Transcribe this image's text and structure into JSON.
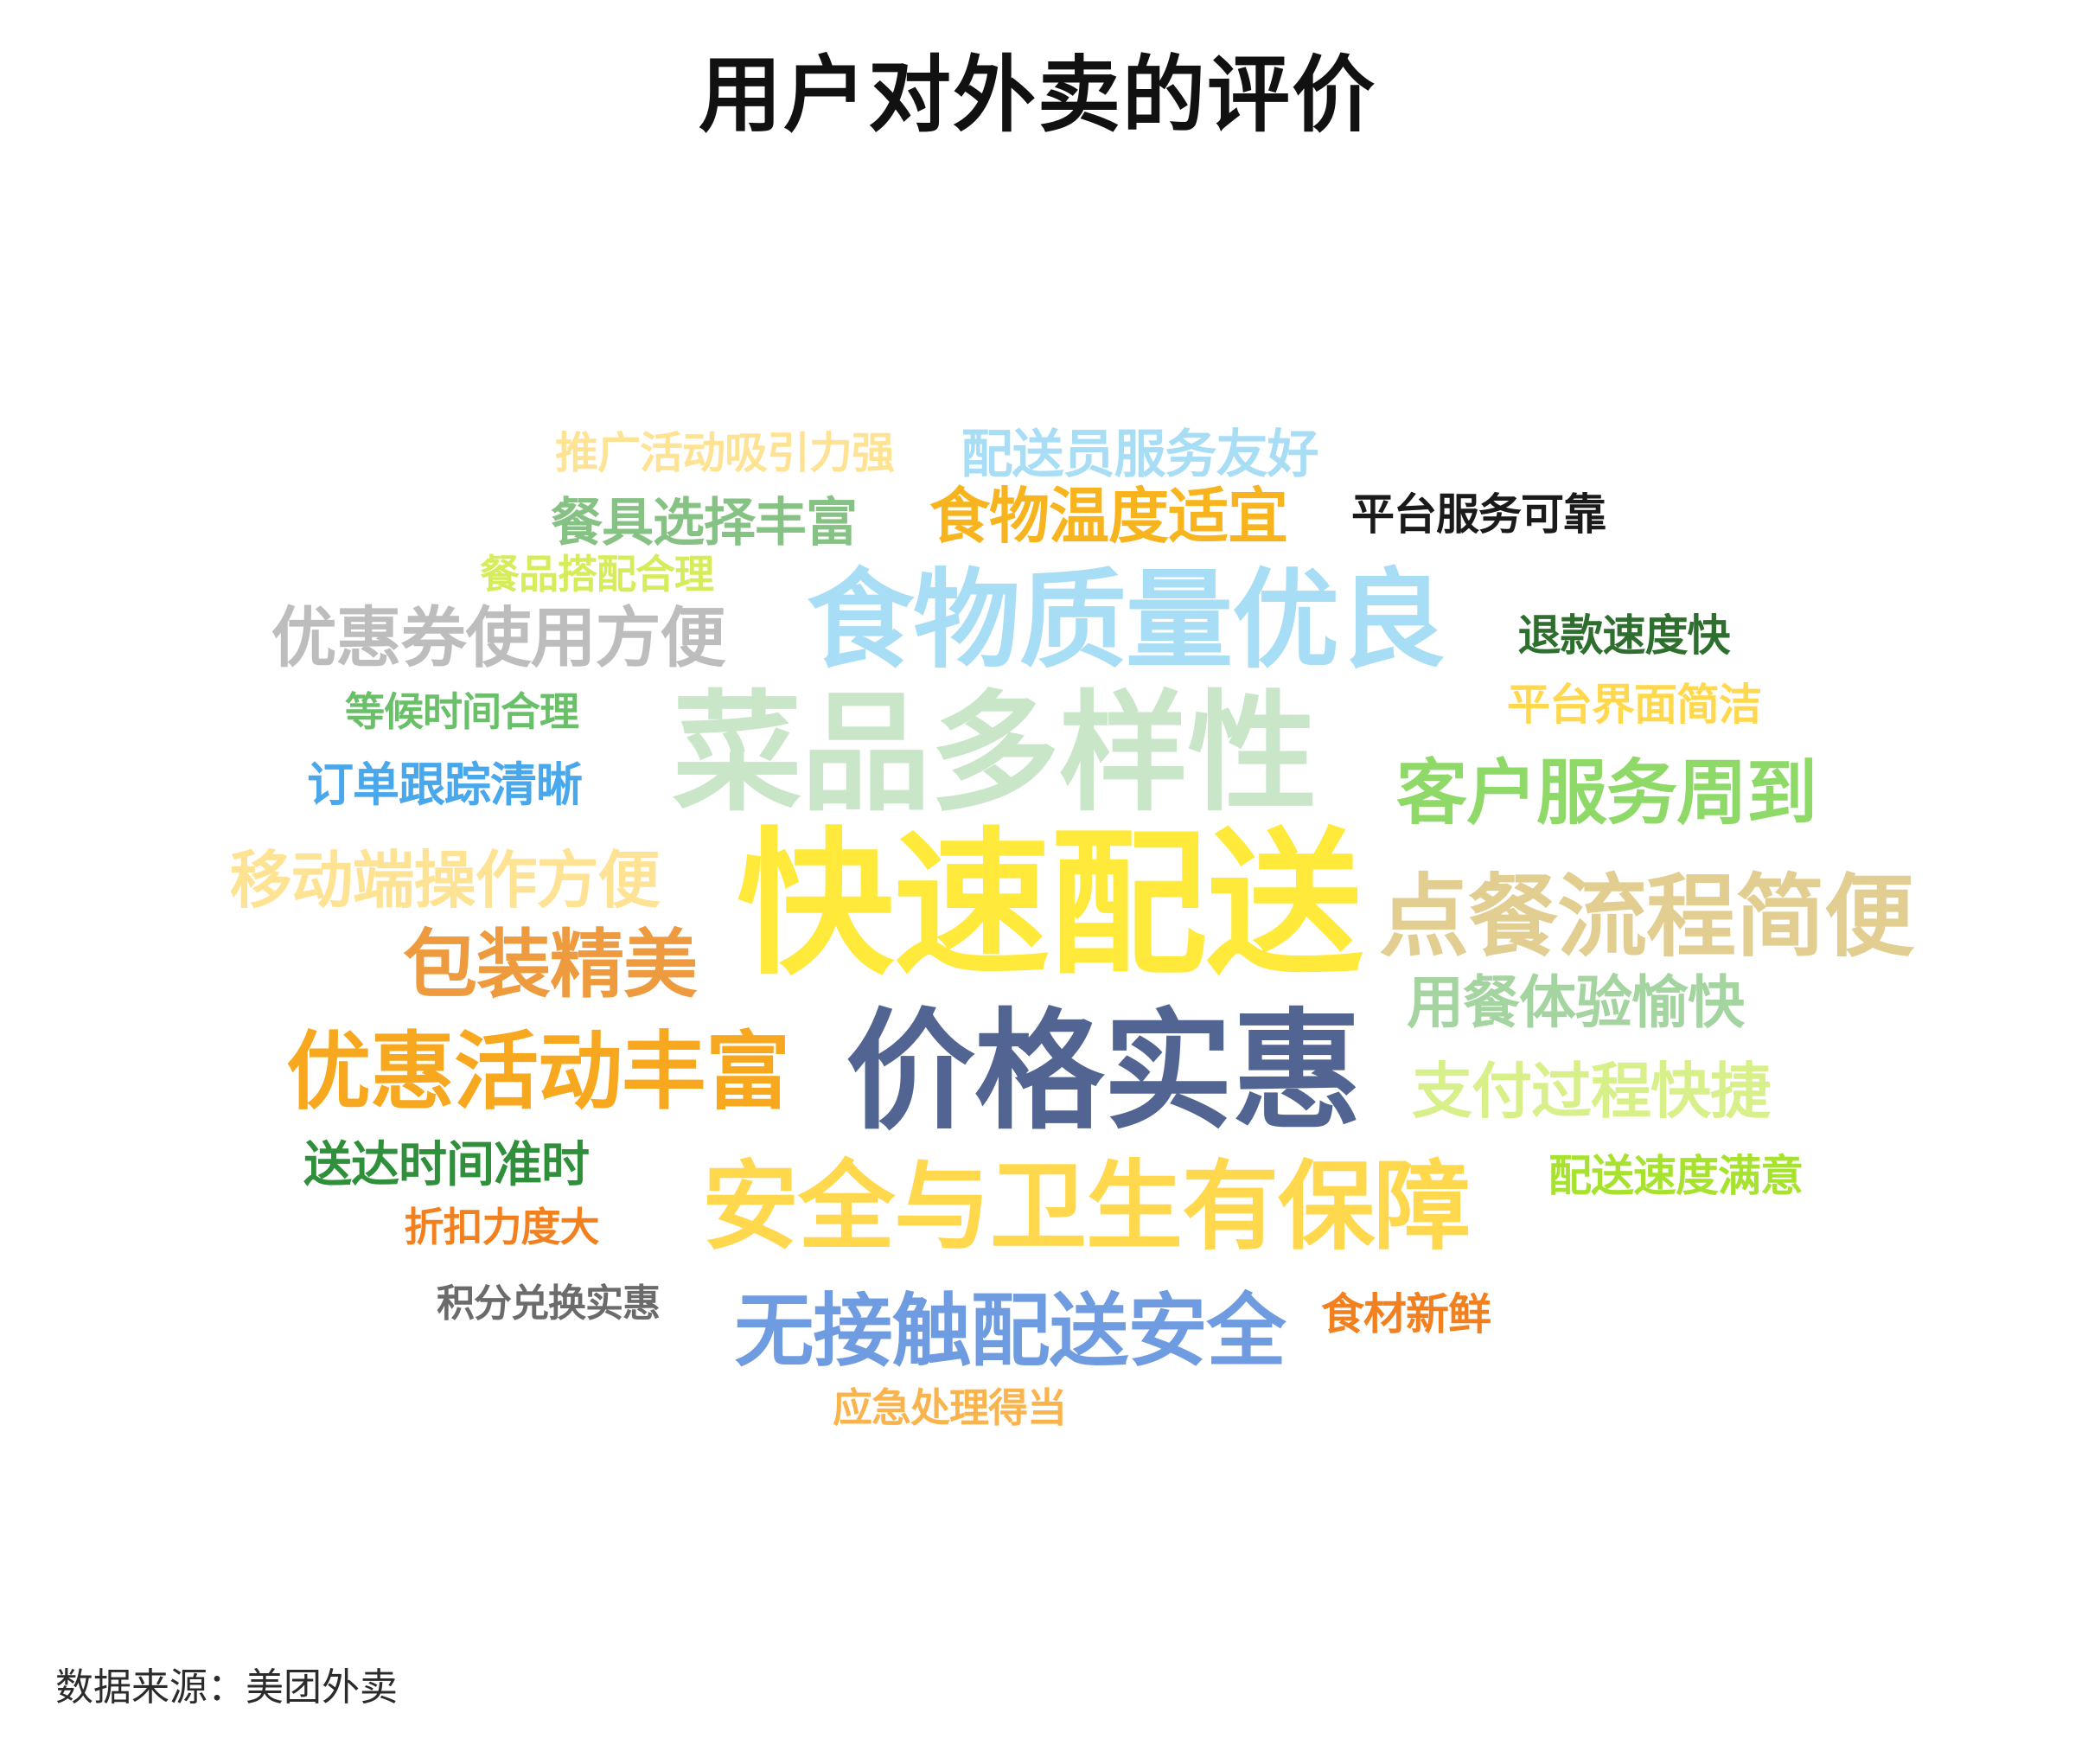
{
  "chart_data": {
    "type": "wordcloud",
    "title": "用户对外卖的评价",
    "source": "数据来源：美团外卖",
    "words": [
      {
        "text": "快速配送",
        "color": "#FFE93B"
      },
      {
        "text": "菜品多样性",
        "color": "#C9E6C9"
      },
      {
        "text": "食物质量优良",
        "color": "#A8DDF6"
      },
      {
        "text": "价格实惠",
        "color": "#526492"
      },
      {
        "text": "安全与卫生有保障",
        "color": "#FFD84D"
      },
      {
        "text": "点餐流程简便",
        "color": "#E3CE92"
      },
      {
        "text": "优惠活动丰富",
        "color": "#F8A81E"
      },
      {
        "text": "无接触配送安全",
        "color": "#6F9BE0"
      },
      {
        "text": "客户服务周到",
        "color": "#8FD969"
      },
      {
        "text": "包装精美",
        "color": "#EE9B3F"
      },
      {
        "text": "移动端操作方便",
        "color": "#FFE394"
      },
      {
        "text": "优惠券使用方便",
        "color": "#BDBDBD"
      },
      {
        "text": "食物温度适宜",
        "color": "#F8B41E"
      },
      {
        "text": "用餐体验愉快",
        "color": "#A4D4A0"
      },
      {
        "text": "支付过程快捷",
        "color": "#D8F08A"
      },
      {
        "text": "配送员服务友好",
        "color": "#A8DDF6"
      },
      {
        "text": "餐具选择丰富",
        "color": "#86C284"
      },
      {
        "text": "订单跟踪清晰",
        "color": "#49A7EC"
      },
      {
        "text": "送达时间准时",
        "color": "#2F8F3A"
      },
      {
        "text": "推广活动吸引力强",
        "color": "#FFE394"
      },
      {
        "text": "平台服务可靠",
        "color": "#1A1A1A"
      },
      {
        "text": "退款速度快",
        "color": "#2E6E2E"
      },
      {
        "text": "平台界面简洁",
        "color": "#FFD84D"
      },
      {
        "text": "配送速度满意",
        "color": "#A6E22E"
      },
      {
        "text": "等候时间合理",
        "color": "#6ABF69"
      },
      {
        "text": "餐品搭配合理",
        "color": "#D7EC5A"
      },
      {
        "text": "折扣力度大",
        "color": "#F2801E"
      },
      {
        "text": "积分兑换实惠",
        "color": "#6B6B6B"
      },
      {
        "text": "食材新鲜",
        "color": "#F2801E"
      },
      {
        "text": "应急处理得当",
        "color": "#FAB44E"
      }
    ]
  }
}
